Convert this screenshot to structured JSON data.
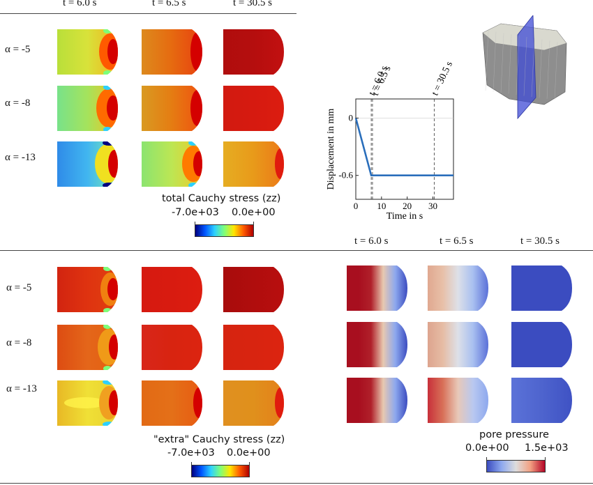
{
  "top_section": {
    "time_headers": [
      "t = 6.0 s",
      "t = 6.5 s",
      "t = 30.5 s"
    ],
    "alpha_labels": [
      "α = -5",
      "α = -8",
      "α = -13"
    ],
    "colorbar": {
      "title": "total Cauchy stress (zz)",
      "min": "-7.0e+03",
      "max": "0.0e+00"
    }
  },
  "bottom_left": {
    "alpha_labels": [
      "α = -5",
      "α = -8",
      "α = -13"
    ],
    "colorbar": {
      "title": "\"extra\" Cauchy stress (zz)",
      "min": "-7.0e+03",
      "max": "0.0e+00"
    }
  },
  "bottom_right": {
    "time_headers": [
      "t = 6.0 s",
      "t = 6.5 s",
      "t = 30.5 s"
    ],
    "colorbar": {
      "title": "pore pressure",
      "min": "0.0e+00",
      "max": "1.5e+03"
    }
  },
  "chart_data": {
    "type": "line",
    "xlabel": "Time in s",
    "ylabel": "Displacement in mm",
    "x_ticks": [
      0,
      10,
      20,
      30
    ],
    "y_ticks": [
      {
        "value": 0,
        "label": "0"
      },
      {
        "value": -0.6,
        "label": "-0.6"
      }
    ],
    "xlim": [
      0,
      38
    ],
    "ylim": [
      -0.85,
      0.2
    ],
    "series": [
      {
        "x": [
          0,
          6,
          38
        ],
        "y": [
          0,
          -0.6,
          -0.6
        ],
        "color": "#2a6ebb"
      }
    ],
    "markers": [
      {
        "x": 6.0,
        "label": "t = 6.0 s"
      },
      {
        "x": 6.5,
        "label": "t = 6.5 s"
      },
      {
        "x": 30.5,
        "label": "t = 30.5 s"
      }
    ]
  },
  "colors": {
    "jet": [
      "#00007f",
      "#0055ff",
      "#2dd0ff",
      "#7dff7a",
      "#ffe600",
      "#ff5a00",
      "#b00000"
    ],
    "coolwarm": [
      "#3b4cc0",
      "#8da8ee",
      "#dddddd",
      "#f2a082",
      "#b40426"
    ]
  }
}
